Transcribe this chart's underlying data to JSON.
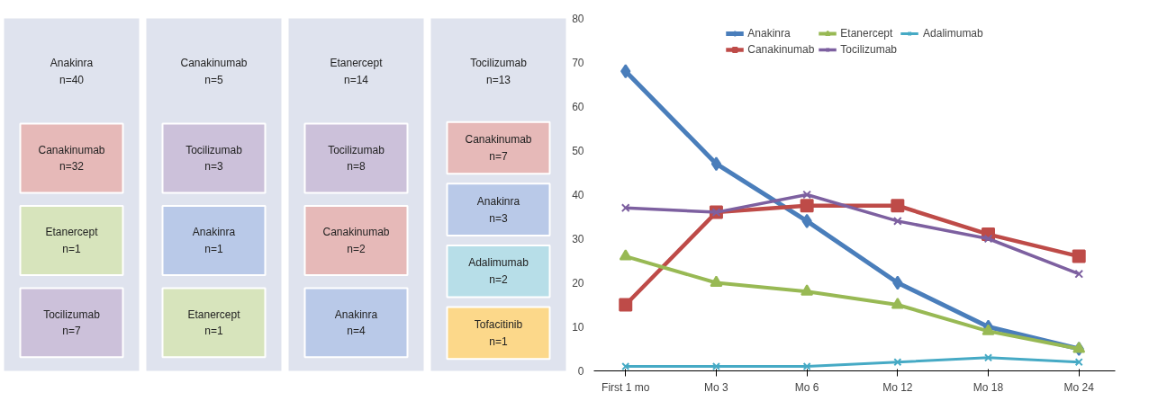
{
  "chart_data": [
    {
      "type": "other",
      "title": "Anakinra\nn=40",
      "annotations": [
        "Canakinumab\nn=32",
        "Etanercept\nn=1",
        "Tocilizumab\nn=7"
      ],
      "colors": [
        "#e6b9b8",
        "#d7e4bc",
        "#ccc1da"
      ]
    },
    {
      "type": "other",
      "title": "Canakinumab\nn=5",
      "annotations": [
        "Tocilizumab\nn=3",
        "Anakinra\nn=1",
        "Etanercept\nn=1"
      ],
      "colors": [
        "#ccc1da",
        "#b9c9e8",
        "#d7e4bc"
      ]
    },
    {
      "type": "other",
      "title": "Etanercept\nn=14",
      "annotations": [
        "Tocilizumab\nn=8",
        "Canakinumab\nn=2",
        "Anakinra\nn=4"
      ],
      "colors": [
        "#ccc1da",
        "#e6b9b8",
        "#b9c9e8"
      ]
    },
    {
      "type": "other",
      "title": "Tocilizumab\nn=13",
      "annotations": [
        "Canakinumab\nn=7",
        "Anakinra\nn=3",
        "Adalimumab\nn=2",
        "Tofacitinib\nn=1"
      ],
      "colors": [
        "#e6b9b8",
        "#b9c9e8",
        "#b7dee8",
        "#fcd88a"
      ]
    },
    {
      "type": "line",
      "categories": [
        "First 1 mo",
        "Mo 3",
        "Mo 6",
        "Mo 12",
        "Mo 18",
        "Mo 24"
      ],
      "ylim": [
        0,
        80
      ],
      "yticks": [
        0,
        10,
        20,
        30,
        40,
        50,
        60,
        70,
        80
      ],
      "grid": false,
      "legend": "top",
      "series": [
        {
          "name": "Anakinra",
          "color": "#4a7ebb",
          "marker": "diamond",
          "values": [
            68,
            47,
            34,
            20,
            10,
            5
          ]
        },
        {
          "name": "Canakinumab",
          "color": "#be4b48",
          "marker": "square",
          "values": [
            15,
            36,
            37.5,
            37.5,
            31,
            26
          ]
        },
        {
          "name": "Etanercept",
          "color": "#98b954",
          "marker": "triangle",
          "values": [
            26,
            20,
            18,
            15,
            9,
            5
          ]
        },
        {
          "name": "Tocilizumab",
          "color": "#7d60a0",
          "marker": "cross",
          "values": [
            37,
            36,
            40,
            34,
            30,
            22
          ]
        },
        {
          "name": "Adalimumab",
          "color": "#46aac5",
          "marker": "cross",
          "values": [
            1,
            1,
            1,
            2,
            3,
            2
          ]
        }
      ]
    }
  ]
}
